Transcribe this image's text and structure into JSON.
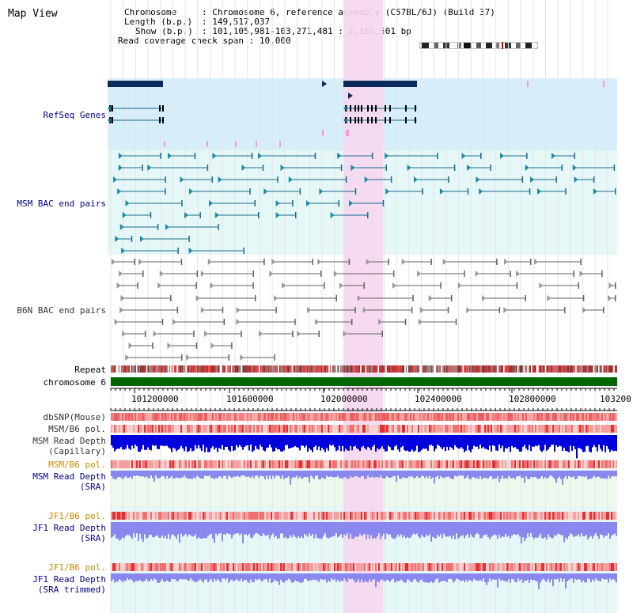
{
  "app": {
    "title": "Map View"
  },
  "info": {
    "chromosome_label": "Chromosome",
    "chromosome_value": "Chromosome 6, reference assembly (C57BL/6J) (Build 37)",
    "length_label": "Length (b.p.)",
    "length_value": "149,517,037",
    "show_label": "Show (b.p.)",
    "show_value": "101,105,981-103,271,481 : 2,165,501 bp",
    "coverage_label": "Read coverage check span",
    "coverage_value": "10,000"
  },
  "tracks": {
    "refseq": "RefSeq Genes",
    "msm_bac": "MSM BAC end pairs",
    "b6n_bac": "B6N BAC end pairs",
    "repeat": "Repeat",
    "chromosome": "chromosome 6",
    "dbsnp": "dbSNP(Mouse)",
    "msm_b6_pol_1": "MSM/B6 pol.",
    "msm_depth_cap_1": "MSM Read Depth",
    "msm_depth_cap_2": "(Capillary)",
    "msm_b6_pol_2": "MSM/B6 pol.",
    "msm_depth_sra_1": "MSM Read Depth",
    "msm_depth_sra_2": "(SRA)",
    "jf1_b6_pol_1": "JF1/B6 pol.",
    "jf1_depth_sra_1": "JF1 Read Depth",
    "jf1_depth_sra_2": "(SRA)",
    "jf1_b6_pol_2": "JF1/B6 pol.",
    "jf1_depth_trim_1": "JF1 Read Depth",
    "jf1_depth_trim_2": "(SRA trimmed)"
  },
  "axis": {
    "ticks": [
      "101200000",
      "101600000",
      "102000000",
      "102400000",
      "102800000",
      "103200"
    ]
  },
  "colors": {
    "highlight": "#f6d6f0",
    "refseq_bg": "#d6eef9",
    "msm_bg": "#e6f7f7",
    "gene_dark": "#0a2a5a",
    "msm_feature": "#1a6b8a",
    "b6n_feature": "#808080",
    "chromosome_band": "#006600",
    "snp": "#f08080",
    "depth_cap": "#0000dd",
    "depth_sra": "#8888ee"
  }
}
